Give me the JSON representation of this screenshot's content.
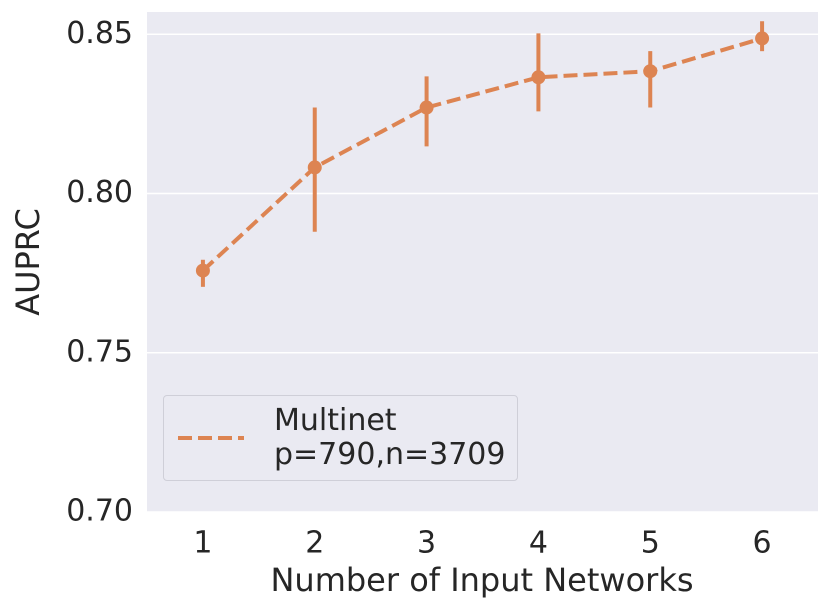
{
  "chart_data": {
    "type": "pointplot",
    "x_label": "Number of Input Networks",
    "y_label": "AUPRC",
    "categories": [
      "1",
      "2",
      "3",
      "4",
      "5",
      "6"
    ],
    "series": [
      {
        "name": "Multinet\np=790,n=3709",
        "color": "#dd8452",
        "values": [
          0.7758,
          0.8082,
          0.827,
          0.8365,
          0.8384,
          0.8487
        ],
        "ci_lower": [
          0.7707,
          0.788,
          0.8148,
          0.8258,
          0.827,
          0.8447
        ],
        "ci_upper": [
          0.7792,
          0.827,
          0.8368,
          0.8503,
          0.8447,
          0.8541
        ]
      }
    ],
    "ylim": [
      0.7,
      0.857
    ],
    "yticks": [
      {
        "value": 0.7,
        "label": "0.70"
      },
      {
        "value": 0.75,
        "label": "0.75"
      },
      {
        "value": 0.8,
        "label": "0.80"
      },
      {
        "value": 0.85,
        "label": "0.85"
      }
    ],
    "grid": true,
    "legend": "lower left"
  }
}
